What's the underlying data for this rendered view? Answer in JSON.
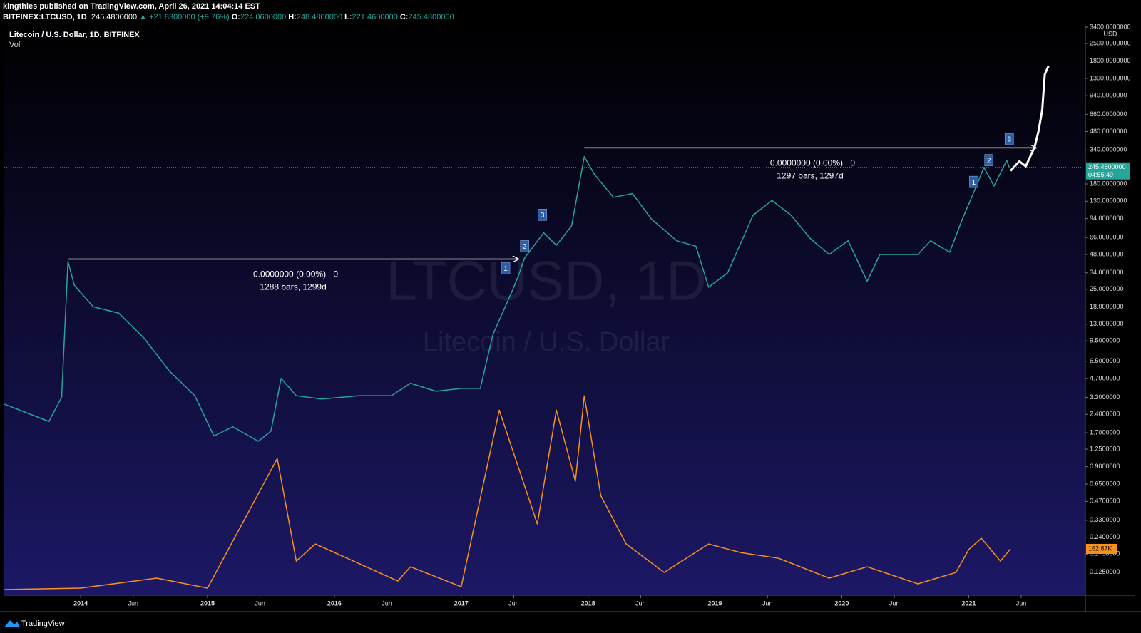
{
  "header": {
    "published": "kingthies published on TradingView.com, April 26, 2021 14:04:14 EST",
    "symbol": "BITFINEX:LTCUSD, 1D",
    "price": "245.4800000",
    "change": "▲ +21.8300000 (+9.76%)",
    "open_label": "O:",
    "open": "224.0600000",
    "high_label": "H:",
    "high": "248.4800000",
    "low_label": "L:",
    "low": "221.4600000",
    "close_label": "C:",
    "close": "245.4800000"
  },
  "chart_data": {
    "type": "line",
    "log_scale": true,
    "grid": false,
    "watermark": "LTCUSD, 1D",
    "watermark_subtitle": "Litecoin / U.S. Dollar",
    "currency": "USD",
    "xlim": [
      2013.398,
      2021.92
    ],
    "ylim": [
      0.081,
      3490
    ],
    "y2lim": [
      0,
      2000
    ],
    "xticks": [
      2014,
      {
        "value": 2014.414,
        "label": "Jun"
      },
      2015,
      {
        "value": 2015.414,
        "label": "Jun"
      },
      2016,
      {
        "value": 2016.414,
        "label": "Jun"
      },
      2017,
      {
        "value": 2017.414,
        "label": "Jun"
      },
      2018,
      {
        "value": 2018.414,
        "label": "Jun"
      },
      2019,
      {
        "value": 2019.414,
        "label": "Jun"
      },
      2020,
      {
        "value": 2020.414,
        "label": "Jun"
      },
      2021,
      {
        "value": 2021.414,
        "label": "Jun"
      }
    ],
    "yticks": [
      {
        "value": 3400,
        "label": "3400.0000000"
      },
      {
        "value": 2500,
        "label": "2500.0000000"
      },
      {
        "value": 1800,
        "label": "1800.0000000"
      },
      {
        "value": 1300,
        "label": "1300.0000000"
      },
      {
        "value": 940,
        "label": "940.0000000"
      },
      {
        "value": 660,
        "label": "660.0000000"
      },
      {
        "value": 480,
        "label": "480.0000000"
      },
      {
        "value": 340,
        "label": "340.0000000"
      },
      {
        "value": 180,
        "label": "180.0000000"
      },
      {
        "value": 130,
        "label": "130.0000000"
      },
      {
        "value": 94,
        "label": "94.0000000"
      },
      {
        "value": 66,
        "label": "66.0000000"
      },
      {
        "value": 48,
        "label": "48.0000000"
      },
      {
        "value": 34,
        "label": "34.0000000"
      },
      {
        "value": 25,
        "label": "25.0000000"
      },
      {
        "value": 18,
        "label": "18.0000000"
      },
      {
        "value": 13,
        "label": "13.0000000"
      },
      {
        "value": 9.5,
        "label": "9.5000000"
      },
      {
        "value": 6.5,
        "label": "6.5000000"
      },
      {
        "value": 4.7,
        "label": "4.7000000"
      },
      {
        "value": 3.3,
        "label": "3.3000000"
      },
      {
        "value": 2.4,
        "label": "2.4000000"
      },
      {
        "value": 1.7,
        "label": "1.7000000"
      },
      {
        "value": 1.25,
        "label": "1.2500000"
      },
      {
        "value": 0.9,
        "label": "0.9000000"
      },
      {
        "value": 0.65,
        "label": "0.6500000"
      },
      {
        "value": 0.47,
        "label": "0.4700000"
      },
      {
        "value": 0.33,
        "label": "0.3300000"
      },
      {
        "value": 0.24,
        "label": "0.2400000"
      },
      {
        "value": 0.175,
        "label": "0.1750000"
      },
      {
        "value": 0.125,
        "label": "0.1250000"
      }
    ],
    "series": [
      {
        "name": "Litecoin / U.S. Dollar, 1D, BITFINEX",
        "color": "#26a69a",
        "x": [
          2013.4,
          2013.75,
          2013.85,
          2013.9,
          2013.95,
          2014.1,
          2014.3,
          2014.5,
          2014.7,
          2014.9,
          2015.05,
          2015.2,
          2015.4,
          2015.5,
          2015.58,
          2015.7,
          2015.9,
          2016.2,
          2016.45,
          2016.6,
          2016.8,
          2017.0,
          2017.15,
          2017.25,
          2017.4,
          2017.45,
          2017.5,
          2017.65,
          2017.75,
          2017.87,
          2017.97,
          2018.05,
          2018.2,
          2018.35,
          2018.5,
          2018.7,
          2018.85,
          2018.95,
          2019.1,
          2019.3,
          2019.45,
          2019.6,
          2019.75,
          2019.9,
          2020.05,
          2020.2,
          2020.3,
          2020.6,
          2020.7,
          2020.85,
          2020.95,
          2021.05,
          2021.12,
          2021.2,
          2021.3,
          2021.32
        ],
        "values": [
          2.9,
          2.1,
          3.3,
          42,
          27,
          18,
          16,
          10,
          5.4,
          3.4,
          1.6,
          1.9,
          1.45,
          1.75,
          4.7,
          3.4,
          3.2,
          3.4,
          3.4,
          4.3,
          3.7,
          3.9,
          3.9,
          10.7,
          24,
          32,
          45,
          72,
          57,
          82,
          300,
          215,
          140,
          150,
          93,
          62,
          56,
          26,
          34,
          100,
          132,
          100,
          65,
          48,
          62,
          29,
          48,
          48,
          62,
          50,
          93,
          162,
          245,
          173,
          280,
          245.48
        ]
      },
      {
        "color": "#ffffff",
        "x": [
          2021.33,
          2021.4,
          2021.45,
          2021.52,
          2021.55,
          2021.58,
          2021.6,
          2021.63
        ],
        "values": [
          230,
          275,
          250,
          360,
          480,
          720,
          1400,
          1650
        ]
      },
      {
        "name": "Vol",
        "color": "#f7931a",
        "axis": "y2",
        "last_label": "162.87K",
        "x": [
          2013.4,
          2014.0,
          2014.6,
          2015.0,
          2015.55,
          2015.7,
          2015.85,
          2016.5,
          2016.6,
          2017.0,
          2017.3,
          2017.45,
          2017.6,
          2017.75,
          2017.9,
          2017.97,
          2018.1,
          2018.3,
          2018.6,
          2018.95,
          2019.2,
          2019.5,
          2019.9,
          2020.2,
          2020.6,
          2020.9,
          2021.0,
          2021.1,
          2021.25,
          2021.33
        ],
        "values": [
          20,
          25,
          60,
          25,
          480,
          120,
          180,
          50,
          100,
          30,
          650,
          450,
          250,
          650,
          400,
          700,
          350,
          180,
          80,
          180,
          150,
          130,
          60,
          100,
          40,
          80,
          160,
          200,
          120,
          162.87
        ]
      }
    ],
    "last_price": {
      "value": 245.48,
      "label": "245.4800000"
    },
    "countdown": "04:55:49",
    "measures": [
      {
        "x": [
          2013.9,
          2017.45
        ],
        "price": 44,
        "change": "−0.0000000 (0.00%) −0",
        "bars": "1288 bars, 1299d"
      },
      {
        "x": [
          2017.97,
          2021.53
        ],
        "price": 354,
        "change": "−0.0000000 (0.00%) −0",
        "bars": "1297 bars, 1297d"
      }
    ],
    "wave_labels": [
      {
        "label": "1",
        "x": 2017.35,
        "price": 37
      },
      {
        "label": "2",
        "x": 2017.5,
        "price": 56
      },
      {
        "label": "3",
        "x": 2017.64,
        "price": 101
      },
      {
        "label": "1",
        "x": 2021.04,
        "price": 187
      },
      {
        "label": "2",
        "x": 2021.16,
        "price": 281
      },
      {
        "label": "3",
        "x": 2021.32,
        "price": 417
      }
    ]
  },
  "footer": {
    "brand": "TradingView"
  }
}
